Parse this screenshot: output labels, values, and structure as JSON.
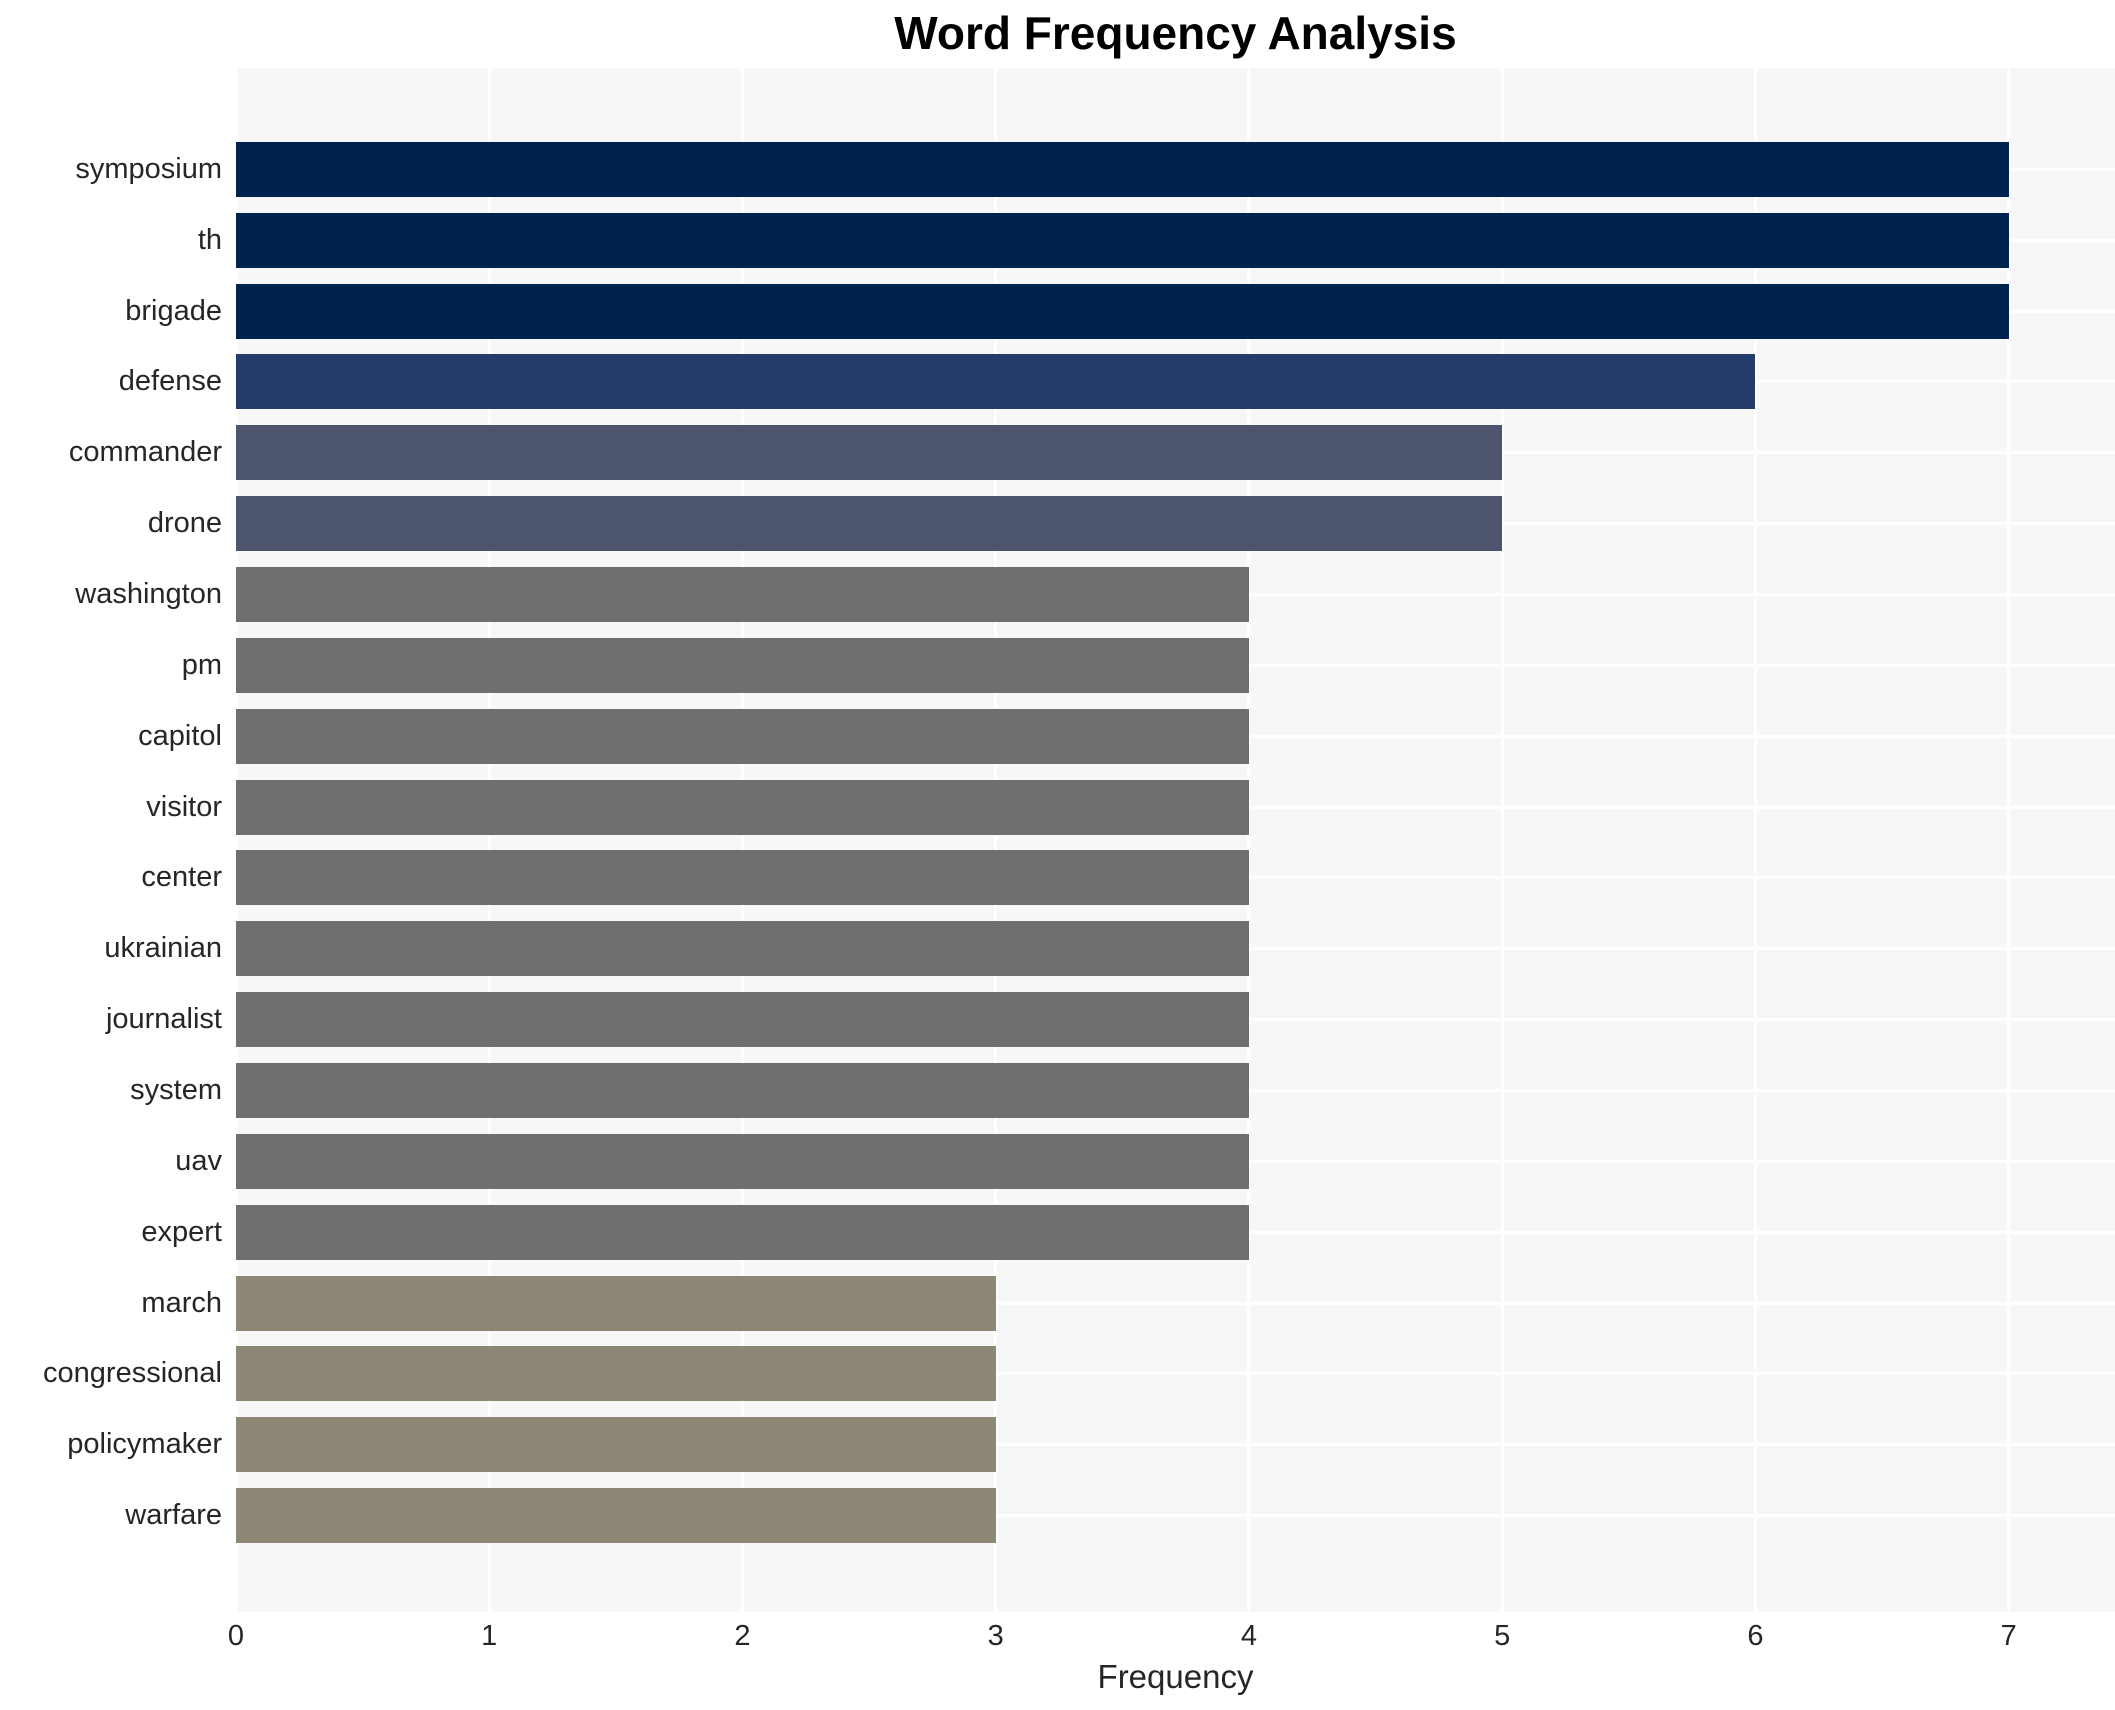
{
  "chart_data": {
    "type": "bar",
    "orientation": "horizontal",
    "title": "Word Frequency Analysis",
    "xlabel": "Frequency",
    "ylabel": "",
    "categories": [
      "symposium",
      "th",
      "brigade",
      "defense",
      "commander",
      "drone",
      "washington",
      "pm",
      "capitol",
      "visitor",
      "center",
      "ukrainian",
      "journalist",
      "system",
      "uav",
      "expert",
      "march",
      "congressional",
      "policymaker",
      "warfare"
    ],
    "values": [
      7,
      7,
      7,
      6,
      5,
      5,
      4,
      4,
      4,
      4,
      4,
      4,
      4,
      4,
      4,
      4,
      3,
      3,
      3,
      3
    ],
    "xticks": [
      0,
      1,
      2,
      3,
      4,
      5,
      6,
      7
    ],
    "xlim": [
      0,
      7.42
    ],
    "grid": true,
    "legend": false,
    "plot_bg_color": "#f7f7f7",
    "grid_color": "#ffffff",
    "text_color": "#262626",
    "title_color": "#000000",
    "value_colors": {
      "7": "#00224e",
      "6": "#243c6b",
      "5": "#4d556e",
      "4": "#6e6f71",
      "3": "#8d8876"
    }
  }
}
